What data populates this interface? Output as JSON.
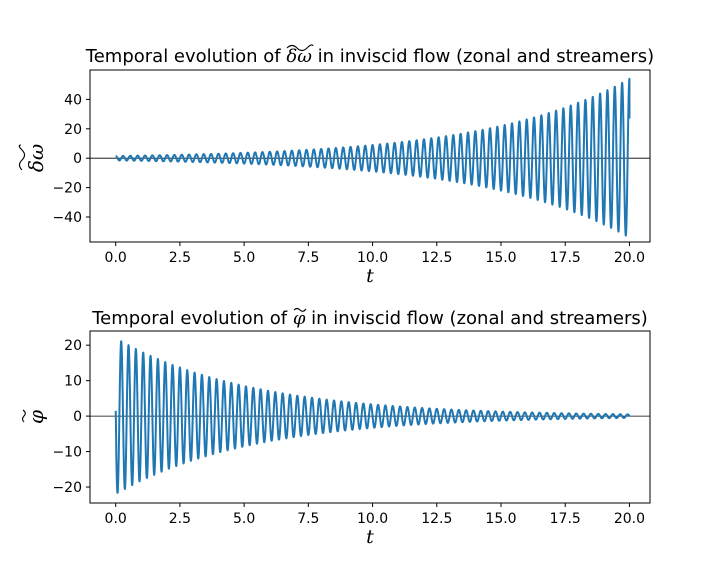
{
  "chart_data": [
    {
      "type": "line",
      "title_prefix": "Temporal evolution of ",
      "title_symbol": "δω",
      "title_suffix": " in inviscid flow (zonal and streamers)",
      "xlabel": "t",
      "ylabel": "δω",
      "xlim": [
        -1,
        20.8
      ],
      "ylim": [
        -57,
        60
      ],
      "xticks": [
        0.0,
        2.5,
        5.0,
        7.5,
        10.0,
        12.5,
        15.0,
        17.5,
        20.0
      ],
      "xtick_labels": [
        "0.0",
        "2.5",
        "5.0",
        "7.5",
        "10.0",
        "12.5",
        "15.0",
        "17.5",
        "20.0"
      ],
      "yticks": [
        -40,
        -20,
        0,
        20,
        40
      ],
      "ytick_labels": [
        "−40",
        "−20",
        "0",
        "20",
        "40"
      ],
      "hline": 0,
      "color": "#1f77b4",
      "series": [
        {
          "name": "δω",
          "t_range": [
            0,
            20
          ],
          "oscillations": 70,
          "envelope_start": 1.5,
          "envelope_end": 54,
          "envelope_shape": "growing",
          "end_value": 27
        }
      ]
    },
    {
      "type": "line",
      "title_prefix": "Temporal evolution of ",
      "title_symbol": "φ",
      "title_suffix": " in inviscid flow (zonal and streamers)",
      "xlabel": "t",
      "ylabel": "φ",
      "xlim": [
        -1,
        20.8
      ],
      "ylim": [
        -24.5,
        24
      ],
      "xticks": [
        0.0,
        2.5,
        5.0,
        7.5,
        10.0,
        12.5,
        15.0,
        17.5,
        20.0
      ],
      "xtick_labels": [
        "0.0",
        "2.5",
        "5.0",
        "7.5",
        "10.0",
        "12.5",
        "15.0",
        "17.5",
        "20.0"
      ],
      "yticks": [
        -20,
        -10,
        0,
        10,
        20
      ],
      "ytick_labels": [
        "−20",
        "−10",
        "0",
        "10",
        "20"
      ],
      "hline": 0,
      "color": "#1f77b4",
      "series": [
        {
          "name": "φ",
          "t_range": [
            0,
            20
          ],
          "oscillations": 70,
          "envelope_start": 22,
          "envelope_end": 0.5,
          "envelope_shape": "decaying",
          "start_value": 1.5,
          "end_value": 0
        }
      ]
    }
  ]
}
